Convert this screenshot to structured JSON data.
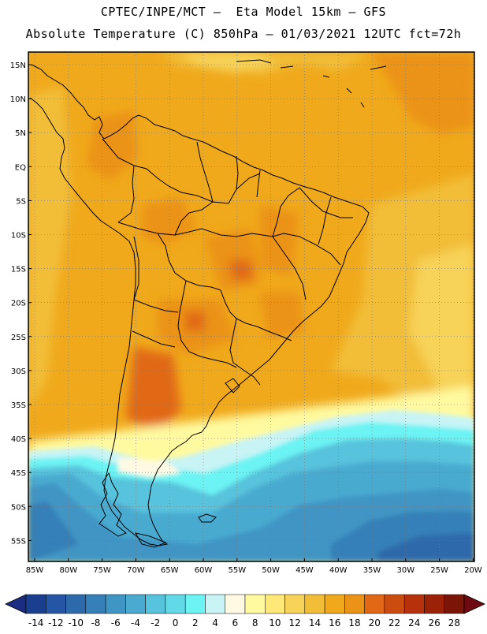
{
  "header": {
    "line1": "CPTEC/INPE/MCT –  Eta Model 15km – GFS",
    "line2": "Absolute Temperature (C) 850hPa – 01/03/2021 12UTC fct=72h"
  },
  "map": {
    "lat_labels": [
      "15N",
      "10N",
      "5N",
      "EQ",
      "5S",
      "10S",
      "15S",
      "20S",
      "25S",
      "30S",
      "35S",
      "40S",
      "45S",
      "50S",
      "55S"
    ],
    "lon_labels": [
      "85W",
      "80W",
      "75W",
      "70W",
      "65W",
      "60W",
      "55W",
      "50W",
      "45W",
      "40W",
      "35W",
      "30W",
      "25W",
      "20W"
    ],
    "gridlines": true
  },
  "colorbar": {
    "labels": [
      "-14",
      "-12",
      "-10",
      "-8",
      "-6",
      "-4",
      "-2",
      "0",
      "2",
      "4",
      "6",
      "8",
      "10",
      "12",
      "14",
      "16",
      "18",
      "20",
      "22",
      "24",
      "26",
      "28"
    ],
    "colors": [
      "#1b3f8f",
      "#2456a3",
      "#2d6aab",
      "#3580b8",
      "#3f95c4",
      "#4aaad0",
      "#58c3dc",
      "#62d9e6",
      "#6cf3f3",
      "#c8f4f6",
      "#fff9e3",
      "#fffaa0",
      "#fde878",
      "#f7d359",
      "#f2be37",
      "#f0a91b",
      "#eb9316",
      "#e16915",
      "#cc4c10",
      "#b7320b",
      "#9b2207",
      "#7a1508"
    ],
    "under_color": "#1b2d80",
    "over_color": "#6f0a12"
  }
}
